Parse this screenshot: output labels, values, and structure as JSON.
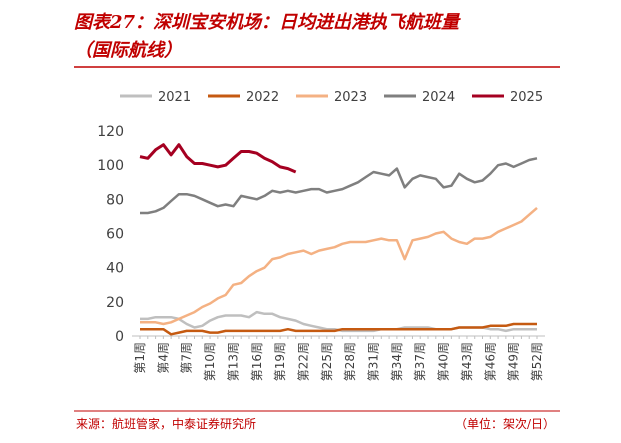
{
  "chart_data": {
    "type": "line",
    "title": [
      "图表27：深圳宝安机场：日均进出港执飞航班量",
      "（国际航线）"
    ],
    "source": "来源：航班管家，中泰证券研究所",
    "unit_note": "（单位：架次/日）",
    "categories": [
      "第1周",
      null,
      null,
      "第4周",
      null,
      null,
      "第7周",
      null,
      null,
      "第10周",
      null,
      null,
      "第13周",
      null,
      null,
      "第16周",
      null,
      null,
      "第19周",
      null,
      null,
      "第22周",
      null,
      null,
      "第25周",
      null,
      null,
      "第28周",
      null,
      null,
      "第31周",
      null,
      null,
      "第34周",
      null,
      null,
      "第37周",
      null,
      null,
      "第40周",
      null,
      null,
      "第43周",
      null,
      null,
      "第46周",
      null,
      null,
      "第49周",
      null,
      null,
      "第52周"
    ],
    "ylim": [
      0,
      120
    ],
    "yticks": [
      0,
      20,
      40,
      60,
      80,
      100,
      120
    ],
    "series": [
      {
        "name": "2021",
        "color": "#bfbfbf",
        "values": [
          10,
          10,
          11,
          11,
          11,
          10,
          7,
          5,
          6,
          9,
          11,
          12,
          12,
          12,
          11,
          14,
          13,
          13,
          11,
          10,
          9,
          7,
          6,
          5,
          4,
          4,
          3,
          3,
          3,
          3,
          3,
          4,
          4,
          4,
          5,
          5,
          5,
          5,
          4,
          4,
          4,
          5,
          5,
          5,
          5,
          4,
          4,
          3,
          4,
          4,
          4,
          4
        ]
      },
      {
        "name": "2022",
        "color": "#c55a11",
        "values": [
          4,
          4,
          4,
          4,
          1,
          2,
          3,
          3,
          3,
          2,
          2,
          3,
          3,
          3,
          3,
          3,
          3,
          3,
          3,
          4,
          3,
          3,
          3,
          3,
          3,
          3,
          4,
          4,
          4,
          4,
          4,
          4,
          4,
          4,
          4,
          4,
          4,
          4,
          4,
          4,
          4,
          5,
          5,
          5,
          5,
          6,
          6,
          6,
          7,
          7,
          7,
          7
        ]
      },
      {
        "name": "2023",
        "color": "#f4b183",
        "values": [
          8,
          8,
          8,
          7,
          8,
          10,
          12,
          14,
          17,
          19,
          22,
          24,
          30,
          31,
          35,
          38,
          40,
          45,
          46,
          48,
          49,
          50,
          48,
          50,
          51,
          52,
          54,
          55,
          55,
          55,
          56,
          57,
          56,
          56,
          45,
          56,
          57,
          58,
          60,
          61,
          57,
          55,
          54,
          57,
          57,
          58,
          61,
          63,
          65,
          67,
          71,
          75
        ]
      },
      {
        "name": "2024",
        "color": "#7f7f7f",
        "values": [
          72,
          72,
          73,
          75,
          79,
          83,
          83,
          82,
          80,
          78,
          76,
          77,
          76,
          82,
          81,
          80,
          82,
          85,
          84,
          85,
          84,
          85,
          86,
          86,
          84,
          85,
          86,
          88,
          90,
          93,
          96,
          95,
          94,
          98,
          87,
          92,
          94,
          93,
          92,
          87,
          88,
          95,
          92,
          90,
          91,
          95,
          100,
          101,
          99,
          101,
          103,
          104
        ]
      },
      {
        "name": "2025",
        "color": "#a50021",
        "values": [
          105,
          104,
          109,
          112,
          106,
          112,
          105,
          101,
          101,
          100,
          99,
          100,
          104,
          108,
          108,
          107,
          104,
          102,
          99,
          98,
          96,
          null,
          null,
          null,
          null,
          null,
          null,
          null,
          null,
          null,
          null,
          null,
          null,
          null,
          null,
          null,
          null,
          null,
          null,
          null,
          null,
          null,
          null,
          null,
          null,
          null,
          null,
          null,
          null,
          null,
          null,
          null
        ]
      }
    ]
  }
}
